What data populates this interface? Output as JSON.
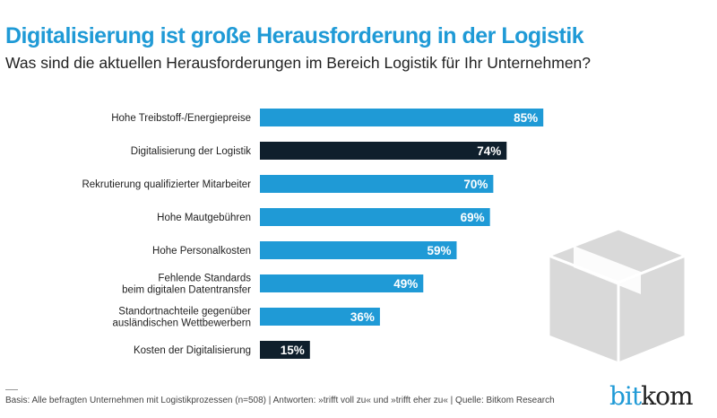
{
  "title": "Digitalisierung ist große Herausforderung in der Logistik",
  "subtitle": "Was sind die aktuellen Herausforderungen im Bereich Logistik für Ihr Unternehmen?",
  "footer": "Basis: Alle befragten Unternehmen mit Logistikprozessen (n=508) | Antworten: »trifft voll zu« und »trifft eher zu« | Quelle: Bitkom Research",
  "logo": {
    "part1": "bit",
    "part2": "kom"
  },
  "colors": {
    "primary": "#1f9ad6",
    "highlight": "#0f1f2c"
  },
  "decoration": "box-icon",
  "chart_data": {
    "type": "bar",
    "orientation": "horizontal",
    "categories": [
      "Hohe Treibstoff-/Energiepreise",
      "Digitalisierung der Logistik",
      "Rekrutierung qualifizierter Mitarbeiter",
      "Hohe Mautgebühren",
      "Hohe Personalkosten",
      "Fehlende Standards\nbeim digitalen Datentransfer",
      "Standortnachteile gegenüber\nausländischen Wettbewerbern",
      "Kosten der Digitalisierung"
    ],
    "values": [
      85,
      74,
      70,
      69,
      59,
      49,
      36,
      15
    ],
    "labels": [
      "85%",
      "74%",
      "70%",
      "69%",
      "59%",
      "49%",
      "36%",
      "15%"
    ],
    "highlighted": [
      false,
      true,
      false,
      false,
      false,
      false,
      false,
      true
    ],
    "unit": "%",
    "xlim": [
      0,
      100
    ],
    "grid": false,
    "legend": "none"
  }
}
